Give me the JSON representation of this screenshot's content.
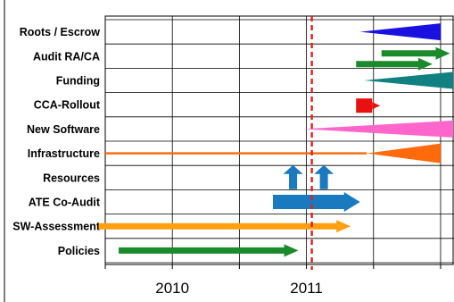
{
  "chart_data": {
    "type": "timeline",
    "x_ticks": [
      "2010",
      "2011"
    ],
    "categories": [
      "Roots / Escrow",
      "Audit RA/CA",
      "Funding",
      "CCA-Rollout",
      "New Software",
      "Infrastructure",
      "Resources",
      "ATE Co-Audit",
      "SW-Assessment",
      "Policies"
    ],
    "xlim": [
      2009.5,
      2012.1
    ],
    "marker": {
      "value": 2011.04,
      "style": "dashed",
      "color": "#e02020"
    },
    "grid": true,
    "items": [
      {
        "category": "Roots / Escrow",
        "shape": "wedge",
        "start": 2011.4,
        "end": 2012.0,
        "color": "#1a10e0"
      },
      {
        "category": "Audit RA/CA",
        "shape": "arrow",
        "start": 2011.56,
        "end": 2012.07,
        "color": "#1a8a2a"
      },
      {
        "category": "Audit RA/CA",
        "shape": "arrow",
        "start": 2011.37,
        "end": 2011.94,
        "color": "#1a8a2a"
      },
      {
        "category": "Funding",
        "shape": "wedge",
        "start": 2011.43,
        "end": 2012.18,
        "color": "#108080"
      },
      {
        "category": "CCA-Rollout",
        "shape": "arrow",
        "start": 2011.37,
        "end": 2011.55,
        "color": "#e81010"
      },
      {
        "category": "New Software",
        "shape": "wedge",
        "start": 2010.98,
        "end": 2012.18,
        "color": "#ff66cc"
      },
      {
        "category": "Infrastructure",
        "shape": "line-wedge",
        "start": 2009.5,
        "wedge_start": 2011.45,
        "end": 2012.0,
        "color": "#ff6a0a"
      },
      {
        "category": "Resources",
        "shape": "up-arrow",
        "start": 2010.9,
        "color": "#1a7ac0"
      },
      {
        "category": "Resources",
        "shape": "up-arrow",
        "start": 2011.13,
        "color": "#1a7ac0"
      },
      {
        "category": "ATE Co-Audit",
        "shape": "arrow",
        "start": 2010.75,
        "end": 2011.4,
        "color": "#1a7ac0"
      },
      {
        "category": "SW-Assessment",
        "shape": "arrow",
        "start": 2009.45,
        "end": 2011.33,
        "color": "#ffa010"
      },
      {
        "category": "Policies",
        "shape": "arrow",
        "start": 2009.6,
        "end": 2010.94,
        "color": "#1a8a2a"
      }
    ]
  }
}
